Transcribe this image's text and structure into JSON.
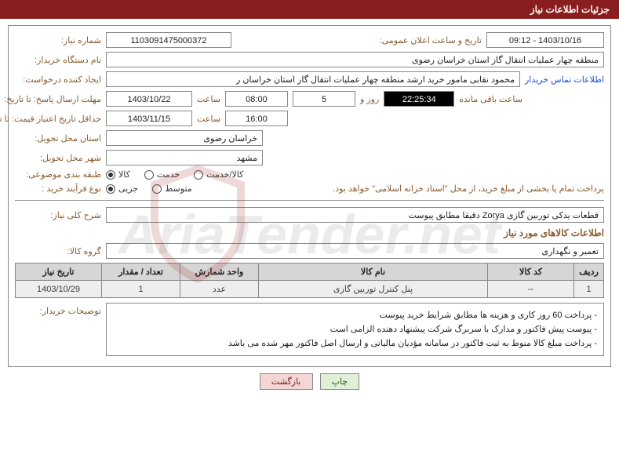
{
  "page_title": "جزئیات اطلاعات نیاز",
  "labels": {
    "need_no": "شماره نیاز:",
    "announce_dt": "تاریخ و ساعت اعلان عمومی:",
    "buyer_org": "نام دستگاه خریدار:",
    "requester": "ایجاد کننده درخواست:",
    "contact_link": "اطلاعات تماس خریدار",
    "resp_deadline": "مهلت ارسال پاسخ: تا تاریخ:",
    "time": "ساعت",
    "days_and": "روز و",
    "remaining": "ساعت باقی مانده",
    "price_validity": "حداقل تاریخ اعتبار قیمت: تا تاریخ:",
    "delivery_province": "استان محل تحویل:",
    "delivery_city": "شهر محل تحویل:",
    "subject_class": "طبقه بندی موضوعی:",
    "purchase_type": "نوع فرآیند خرید :",
    "payment_note": "پرداخت تمام یا بخشی از مبلغ خرید، از محل \"اسناد خزانه اسلامی\" خواهد بود.",
    "need_desc": "شرح کلی نیاز:",
    "goods_info": "اطلاعات کالاهای مورد نیاز",
    "goods_group": "گروه کالا:",
    "buyer_notes": "توضیحات خریدار:"
  },
  "fields": {
    "need_no": "1103091475000372",
    "announce_dt": "1403/10/16 - 09:12",
    "buyer_org": "منطقه چهار عملیات انتقال گاز   استان خراسان رضوی",
    "requester": "محمود نقابی مامور خرید ارشد منطقه چهار عملیات انتقال گاز   استان خراسان ر",
    "resp_date": "1403/10/22",
    "resp_time": "08:00",
    "resp_days": "5",
    "resp_remain": "22:25:34",
    "validity_date": "1403/11/15",
    "validity_time": "16:00",
    "delivery_province": "خراسان رضوی",
    "delivery_city": "مشهد",
    "need_desc": "قطعات یدکی توربین گازی Zorya دقیقا مطابق پیوست",
    "goods_group": "تعمیر و نگهداری"
  },
  "radios": {
    "subject": [
      {
        "label": "کالا",
        "checked": true
      },
      {
        "label": "خدمت",
        "checked": false
      },
      {
        "label": "کالا/خدمت",
        "checked": false
      }
    ],
    "purchase": [
      {
        "label": "جزیی",
        "checked": true
      },
      {
        "label": "متوسط",
        "checked": false
      }
    ]
  },
  "table": {
    "headers": [
      "ردیف",
      "کد کالا",
      "نام کالا",
      "واحد شمارش",
      "تعداد / مقدار",
      "تاریخ نیاز"
    ],
    "rows": [
      [
        "1",
        "--",
        "پنل کنترل توربین گازی",
        "عدد",
        "1",
        "1403/10/29"
      ]
    ],
    "col_widths": [
      "38px",
      "110px",
      "auto",
      "100px",
      "100px",
      "110px"
    ]
  },
  "buyer_notes": [
    "- پرداخت 60 روز کاری و هزینه ها مطابق شرایط خرید پیوست",
    "- پیوست پیش فاکتور و مدارک با سربرگ شرکت پیشنهاد دهنده الزامی است",
    "- پرداخت مبلغ کالا منوط به ثبت فاکتور در سامانه مؤدیان مالیاتی و ارسال اصل فاکتور مهر شده  می باشد"
  ],
  "buttons": {
    "print": "چاپ",
    "back": "بازگشت"
  },
  "colors": {
    "header_bg": "#8a1e1e",
    "header_fg": "#ffffff",
    "label_fg": "#8a5b2e",
    "border": "#888888",
    "th_bg": "#d6d6d6",
    "td_bg": "#eeeeee",
    "black_field_bg": "#000000",
    "link": "#1a4fd1",
    "btn_print_bg": "#dff0d6",
    "btn_back_bg": "#f4d6d6"
  },
  "watermark": "AriaTender.net"
}
